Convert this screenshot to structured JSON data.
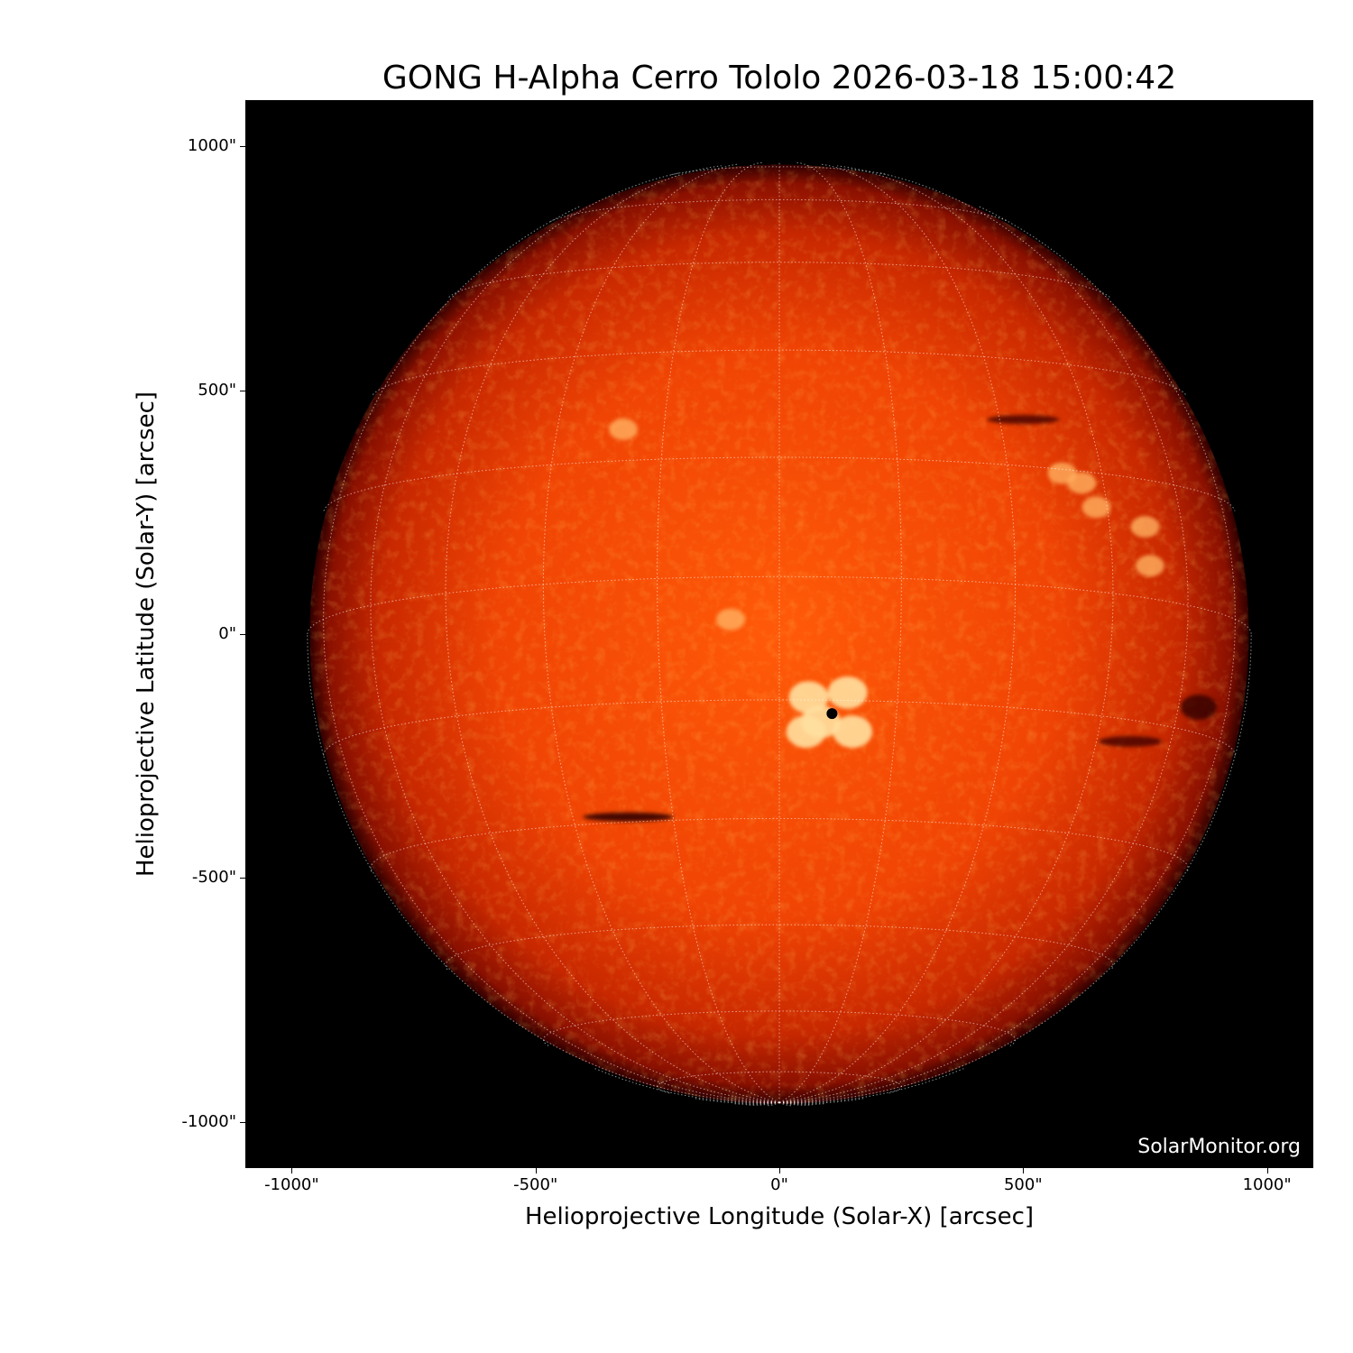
{
  "chart_data": {
    "type": "image",
    "title": "GONG H-Alpha Cerro Tololo 2026-03-18 15:00:42",
    "xlabel": "Helioprojective Longitude (Solar-X) [arcsec]",
    "ylabel": "Helioprojective Latitude (Solar-Y) [arcsec]",
    "xlim": [
      -1095,
      1095
    ],
    "ylim": [
      -1095,
      1095
    ],
    "xticks": [
      {
        "v": -1000,
        "label": "-1000\""
      },
      {
        "v": -500,
        "label": "-500\""
      },
      {
        "v": 0,
        "label": "0\""
      },
      {
        "v": 500,
        "label": "500\""
      },
      {
        "v": 1000,
        "label": "1000\""
      }
    ],
    "yticks": [
      {
        "v": 1000,
        "label": "1000\""
      },
      {
        "v": 500,
        "label": "500\""
      },
      {
        "v": 0,
        "label": "0\""
      },
      {
        "v": -500,
        "label": "-500\""
      },
      {
        "v": -1000,
        "label": "-1000\""
      }
    ],
    "solar_radius_arcsec": 963,
    "grid": true,
    "colormap": "gong-halpha red-orange",
    "watermark": "SolarMonitor.org"
  }
}
